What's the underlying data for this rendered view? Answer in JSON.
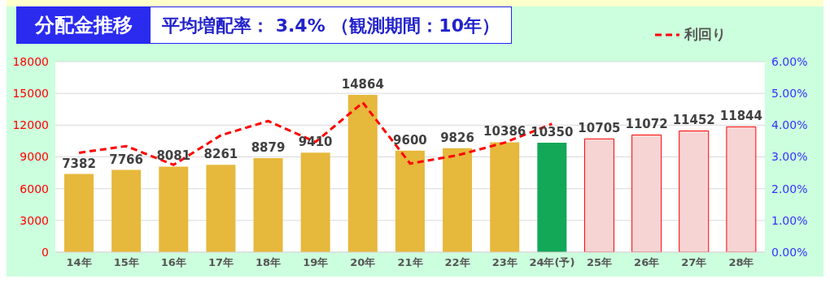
{
  "chart_data": {
    "type": "bar",
    "title": "分配金推移",
    "subtitle": "平均増配率： 3.4% （観測期間：10年）",
    "categories": [
      "14年",
      "15年",
      "16年",
      "17年",
      "18年",
      "19年",
      "20年",
      "21年",
      "22年",
      "23年",
      "24年(予)",
      "25年",
      "26年",
      "27年",
      "28年"
    ],
    "series": [
      {
        "colors": [
          "#e6b83c",
          "#e6b83c",
          "#e6b83c",
          "#e6b83c",
          "#e6b83c",
          "#e6b83c",
          "#e6b83c",
          "#e6b83c",
          "#e6b83c",
          "#e6b83c",
          "#12a858",
          "#f7d4d4",
          "#f7d4d4",
          "#f7d4d4",
          "#f7d4d4"
        ],
        "values": [
          7382,
          7766,
          8081,
          8261,
          8879,
          9410,
          14864,
          9600,
          9826,
          10386,
          10350,
          10705,
          11072,
          11452,
          11844
        ],
        "value_labels": [
          "7382",
          "7766",
          "8081",
          "8261",
          "8879",
          "9410",
          "14864",
          "9600",
          "9826",
          "10386",
          "10350",
          "10705",
          "11072",
          "11452",
          "11844"
        ]
      },
      {
        "type": "line",
        "name": "利回り",
        "color": "#ff0000",
        "axis": "y2",
        "line_style": "dashed",
        "values": [
          3.13,
          3.34,
          2.75,
          3.68,
          4.13,
          3.47,
          4.71,
          2.79,
          3.05,
          3.45,
          4.04,
          null,
          null,
          null,
          null
        ]
      }
    ],
    "ylim": [
      0,
      18000
    ],
    "yticks": [
      0,
      3000,
      6000,
      9000,
      12000,
      15000,
      18000
    ],
    "y2lim": [
      0,
      6
    ],
    "y2ticks": [
      {
        "value": 0,
        "label": "0.00%"
      },
      {
        "value": 1,
        "label": "1.00%"
      },
      {
        "value": 2,
        "label": "2.00%"
      },
      {
        "value": 3,
        "label": "3.00%"
      },
      {
        "value": 4,
        "label": "4.00%"
      },
      {
        "value": 5,
        "label": "5.00%"
      },
      {
        "value": 6,
        "label": "6.00%"
      }
    ],
    "grid": "y",
    "legend": "top right",
    "marker": "none"
  }
}
